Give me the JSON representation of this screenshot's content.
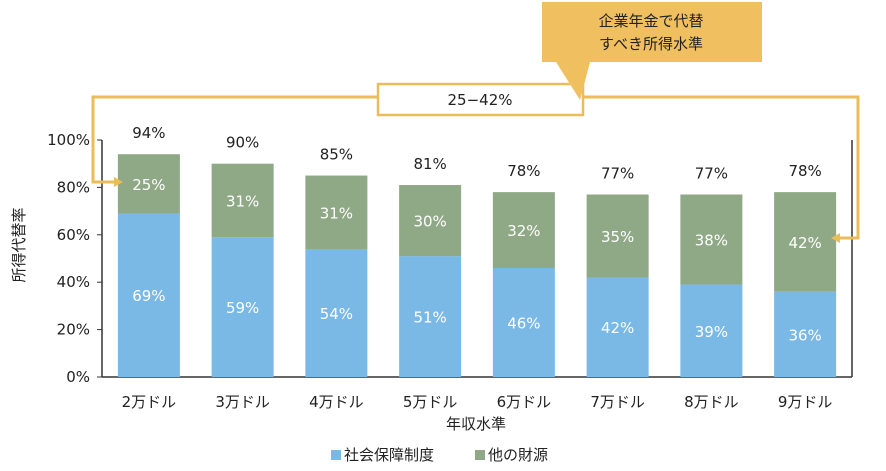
{
  "chart_data": {
    "type": "bar",
    "stacked": true,
    "categories": [
      "2万ドル",
      "3万ドル",
      "4万ドル",
      "5万ドル",
      "6万ドル",
      "7万ドル",
      "8万ドル",
      "9万ドル"
    ],
    "series": [
      {
        "name": "社会保障制度",
        "color": "#7ab8e6",
        "values": [
          69,
          59,
          54,
          51,
          46,
          42,
          39,
          36
        ]
      },
      {
        "name": "他の財源",
        "color": "#8fa886",
        "values": [
          25,
          31,
          31,
          30,
          32,
          35,
          38,
          42
        ]
      }
    ],
    "totals": [
      94,
      90,
      85,
      81,
      78,
      77,
      77,
      78
    ],
    "xlabel": "年収水準",
    "ylabel": "所得代替率",
    "ylim": [
      0,
      100
    ],
    "ytick_labels": [
      "0%",
      "20%",
      "40%",
      "60%",
      "80%",
      "100%"
    ],
    "legend_position": "bottom",
    "callout": {
      "text_line1": "企業年金で代替",
      "text_line2": "すべき所得水準",
      "range_label": "25−42%",
      "box_color": "#f0c060",
      "bracket_color": "#ebbd58"
    }
  }
}
